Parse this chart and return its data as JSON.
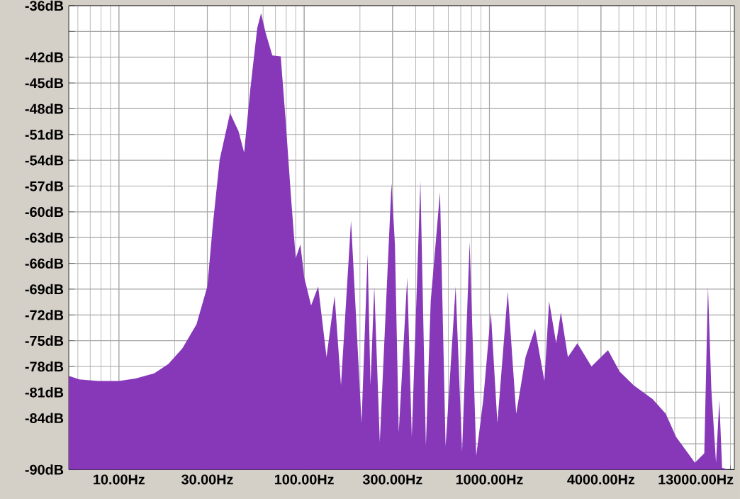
{
  "chart_data": {
    "type": "area",
    "log": "x",
    "grid": true,
    "color": "#8638b8",
    "xlim": [
      5.36,
      21000
    ],
    "xticks": [
      {
        "value": 10,
        "label": "10.00Hz"
      },
      {
        "value": 30,
        "label": "30.00Hz"
      },
      {
        "value": 100,
        "label": "100.00Hz"
      },
      {
        "value": 300,
        "label": "300.00Hz"
      },
      {
        "value": 1000,
        "label": "1000.00Hz"
      },
      {
        "value": 4000,
        "label": "4000.00Hz"
      },
      {
        "value": 13000,
        "label": "13000.00Hz"
      }
    ],
    "ylim": [
      -90,
      -36
    ],
    "yticks": [
      {
        "value": -36,
        "label": "-36dB"
      },
      {
        "value": -39,
        "label": null
      },
      {
        "value": -42,
        "label": "-42dB"
      },
      {
        "value": -45,
        "label": "-45dB"
      },
      {
        "value": -48,
        "label": "-48dB"
      },
      {
        "value": -51,
        "label": "-51dB"
      },
      {
        "value": -54,
        "label": "-54dB"
      },
      {
        "value": -57,
        "label": "-57dB"
      },
      {
        "value": -60,
        "label": "-60dB"
      },
      {
        "value": -63,
        "label": "-63dB"
      },
      {
        "value": -66,
        "label": "-66dB"
      },
      {
        "value": -69,
        "label": "-69dB"
      },
      {
        "value": -72,
        "label": "-72dB"
      },
      {
        "value": -75,
        "label": "-75dB"
      },
      {
        "value": -78,
        "label": "-78dB"
      },
      {
        "value": -81,
        "label": "-81dB"
      },
      {
        "value": -84,
        "label": "-84dB"
      },
      {
        "value": -87,
        "label": null
      },
      {
        "value": -90,
        "label": "-90dB"
      }
    ],
    "x": [
      5.36,
      6.1,
      7.7,
      10,
      12.3,
      15.5,
      18.5,
      22,
      26.2,
      30,
      32.1,
      35,
      39.8,
      44.2,
      47.4,
      51.2,
      55.8,
      58.5,
      62,
      67.3,
      74.7,
      79.2,
      84.9,
      90,
      95.4,
      100,
      109,
      119,
      132,
      146,
      158,
      179,
      192,
      204,
      220,
      228,
      239,
      256,
      296,
      309,
      324,
      360,
      381,
      424,
      454,
      482,
      541,
      580,
      657,
      712,
      782,
      849,
      927,
      1018,
      1104,
      1256,
      1395,
      1567,
      1763,
      1981,
      2100,
      2293,
      2430,
      2653,
      2983,
      3556,
      4366,
      5047,
      6017,
      7603,
      8954,
      10184,
      12860,
      14450,
      15130,
      15780,
      16720,
      17420,
      18030,
      19360
    ],
    "values": [
      -79.1,
      -79.5,
      -79.7,
      -79.7,
      -79.4,
      -78.8,
      -77.7,
      -75.9,
      -73.1,
      -68.7,
      -61.6,
      -53.9,
      -48.5,
      -50.6,
      -53.1,
      -45.7,
      -38.6,
      -36.9,
      -39.2,
      -41.8,
      -41.9,
      -49,
      -58.3,
      -65.4,
      -63.8,
      -67.6,
      -70.9,
      -68.7,
      -76.9,
      -69.8,
      -80.2,
      -61,
      -73.6,
      -84.6,
      -64.9,
      -80.2,
      -68.7,
      -86.8,
      -56.7,
      -63.8,
      -85.7,
      -67.6,
      -86.2,
      -56.4,
      -87.3,
      -70.4,
      -57.7,
      -87.3,
      -68.7,
      -87.9,
      -63.5,
      -88.4,
      -81.8,
      -71.7,
      -84.6,
      -69.3,
      -83.5,
      -76.9,
      -73.6,
      -79.7,
      -70.4,
      -75.3,
      -71.7,
      -76.9,
      -75.3,
      -78,
      -76.1,
      -78.6,
      -80.2,
      -81.8,
      -83.5,
      -86.2,
      -89.2,
      -88.1,
      -68.7,
      -80.7,
      -89.2,
      -81.9,
      -89.8,
      -90
    ]
  }
}
